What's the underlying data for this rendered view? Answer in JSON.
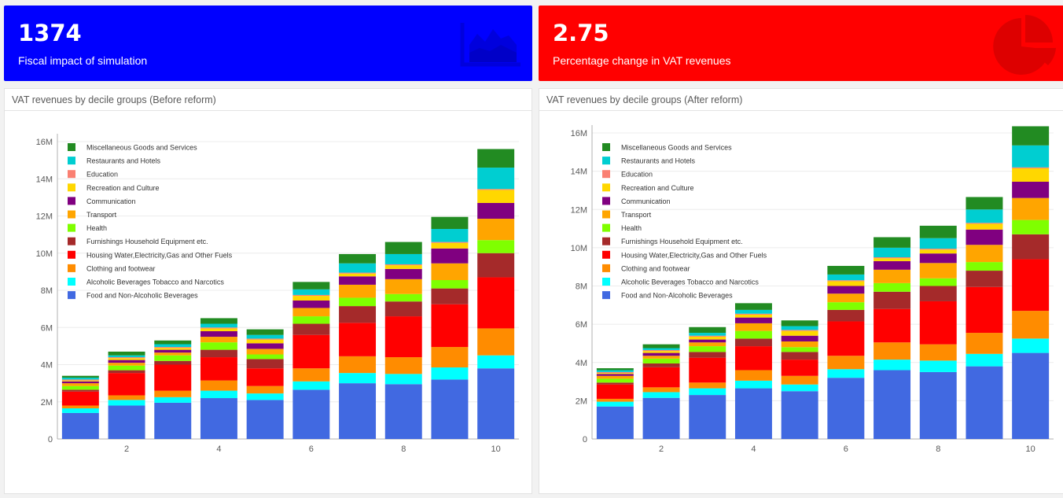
{
  "kpis": [
    {
      "value": "1374",
      "label": "Fiscal impact of simulation",
      "color": "#0000ff",
      "icon": "area-chart-icon"
    },
    {
      "value": "2.75",
      "label": "Percentage change in VAT revenues",
      "color": "#ff0000",
      "icon": "pie-chart-icon"
    }
  ],
  "panels": [
    {
      "title": "VAT revenues by decile groups (Before reform)"
    },
    {
      "title": "VAT revenues by decile groups (After reform)"
    }
  ],
  "chart_data": [
    {
      "type": "bar",
      "stacked": true,
      "title": "VAT revenues by decile groups (Before reform)",
      "categories": [
        1,
        2,
        3,
        4,
        5,
        6,
        7,
        8,
        9,
        10
      ],
      "x_tick_labels": [
        "2",
        "4",
        "6",
        "8",
        "10"
      ],
      "y_tick_labels": [
        "0",
        "2M",
        "4M",
        "6M",
        "8M",
        "10M",
        "12M",
        "14M",
        "16M"
      ],
      "ylim": [
        0,
        16000000
      ],
      "legend_position": "top-left",
      "series": [
        {
          "name": "Food and Non-Alcoholic Beverages",
          "color": "#4169e1",
          "values": [
            1400000,
            1800000,
            1950000,
            2200000,
            2100000,
            2650000,
            3000000,
            2950000,
            3200000,
            3800000
          ]
        },
        {
          "name": "Alcoholic Beverages Tobacco and Narcotics",
          "color": "#00ffff",
          "values": [
            250000,
            300000,
            300000,
            400000,
            350000,
            450000,
            550000,
            550000,
            650000,
            700000
          ]
        },
        {
          "name": "Clothing and footwear",
          "color": "#ff8c00",
          "values": [
            150000,
            250000,
            350000,
            550000,
            400000,
            700000,
            900000,
            900000,
            1100000,
            1450000
          ]
        },
        {
          "name": "Housing Water,Electricity,Gas and Other Fuels",
          "color": "#ff0000",
          "values": [
            750000,
            1200000,
            1400000,
            1250000,
            950000,
            1800000,
            1800000,
            2200000,
            2300000,
            2750000
          ]
        },
        {
          "name": "Furnishings Household Equipment etc.",
          "color": "#a52a2a",
          "values": [
            100000,
            150000,
            200000,
            400000,
            500000,
            600000,
            900000,
            800000,
            850000,
            1300000
          ]
        },
        {
          "name": "Health",
          "color": "#7fff00",
          "values": [
            200000,
            250000,
            300000,
            400000,
            250000,
            400000,
            450000,
            400000,
            450000,
            700000
          ]
        },
        {
          "name": "Transport",
          "color": "#ffa500",
          "values": [
            150000,
            150000,
            150000,
            300000,
            300000,
            450000,
            700000,
            800000,
            900000,
            1150000
          ]
        },
        {
          "name": "Communication",
          "color": "#800080",
          "values": [
            100000,
            150000,
            150000,
            300000,
            300000,
            400000,
            450000,
            550000,
            800000,
            850000
          ]
        },
        {
          "name": "Recreation and Culture",
          "color": "#ffd700",
          "values": [
            50000,
            100000,
            100000,
            150000,
            200000,
            250000,
            150000,
            200000,
            300000,
            700000
          ]
        },
        {
          "name": "Education",
          "color": "#fa8072",
          "values": [
            50000,
            50000,
            50000,
            50000,
            50000,
            50000,
            50000,
            50000,
            50000,
            50000
          ]
        },
        {
          "name": "Restaurants and Hotels",
          "color": "#00ced1",
          "values": [
            100000,
            100000,
            150000,
            200000,
            200000,
            300000,
            500000,
            550000,
            700000,
            1150000
          ]
        },
        {
          "name": "Miscellaneous Goods and Services",
          "color": "#228b22",
          "values": [
            100000,
            200000,
            200000,
            300000,
            300000,
            400000,
            500000,
            650000,
            650000,
            1000000
          ]
        }
      ]
    },
    {
      "type": "bar",
      "stacked": true,
      "title": "VAT revenues by decile groups (After reform)",
      "categories": [
        1,
        2,
        3,
        4,
        5,
        6,
        7,
        8,
        9,
        10
      ],
      "x_tick_labels": [
        "2",
        "4",
        "6",
        "8",
        "10"
      ],
      "y_tick_labels": [
        "0",
        "2M",
        "4M",
        "6M",
        "8M",
        "10M",
        "12M",
        "14M",
        "16M"
      ],
      "ylim": [
        0,
        16000000
      ],
      "legend_position": "top-left",
      "series": [
        {
          "name": "Food and Non-Alcoholic Beverages",
          "color": "#4169e1",
          "values": [
            1700000,
            2150000,
            2300000,
            2650000,
            2500000,
            3200000,
            3600000,
            3500000,
            3800000,
            4500000
          ]
        },
        {
          "name": "Alcoholic Beverages Tobacco and Narcotics",
          "color": "#00ffff",
          "values": [
            250000,
            300000,
            350000,
            400000,
            350000,
            450000,
            550000,
            600000,
            650000,
            750000
          ]
        },
        {
          "name": "Clothing and footwear",
          "color": "#ff8c00",
          "values": [
            150000,
            250000,
            300000,
            550000,
            450000,
            700000,
            900000,
            850000,
            1100000,
            1450000
          ]
        },
        {
          "name": "Housing Water,Electricity,Gas and Other Fuels",
          "color": "#ff0000",
          "values": [
            750000,
            1050000,
            1300000,
            1250000,
            850000,
            1800000,
            1750000,
            2250000,
            2400000,
            2700000
          ]
        },
        {
          "name": "Furnishings Household Equipment etc.",
          "color": "#a52a2a",
          "values": [
            100000,
            200000,
            300000,
            400000,
            400000,
            600000,
            900000,
            800000,
            850000,
            1300000
          ]
        },
        {
          "name": "Health",
          "color": "#7fff00",
          "values": [
            200000,
            250000,
            300000,
            400000,
            250000,
            400000,
            450000,
            400000,
            450000,
            750000
          ]
        },
        {
          "name": "Transport",
          "color": "#ffa500",
          "values": [
            150000,
            150000,
            200000,
            400000,
            300000,
            450000,
            700000,
            800000,
            900000,
            1150000
          ]
        },
        {
          "name": "Communication",
          "color": "#800080",
          "values": [
            100000,
            150000,
            150000,
            300000,
            300000,
            400000,
            450000,
            500000,
            800000,
            850000
          ]
        },
        {
          "name": "Recreation and Culture",
          "color": "#ffd700",
          "values": [
            50000,
            100000,
            150000,
            150000,
            250000,
            250000,
            150000,
            200000,
            300000,
            700000
          ]
        },
        {
          "name": "Education",
          "color": "#fa8072",
          "values": [
            50000,
            50000,
            50000,
            50000,
            50000,
            50000,
            50000,
            50000,
            50000,
            50000
          ]
        },
        {
          "name": "Restaurants and Hotels",
          "color": "#00ced1",
          "values": [
            100000,
            100000,
            150000,
            200000,
            200000,
            300000,
            500000,
            550000,
            700000,
            1150000
          ]
        },
        {
          "name": "Miscellaneous Goods and Services",
          "color": "#228b22",
          "values": [
            100000,
            200000,
            300000,
            350000,
            300000,
            450000,
            550000,
            650000,
            650000,
            1000000
          ]
        }
      ]
    }
  ]
}
